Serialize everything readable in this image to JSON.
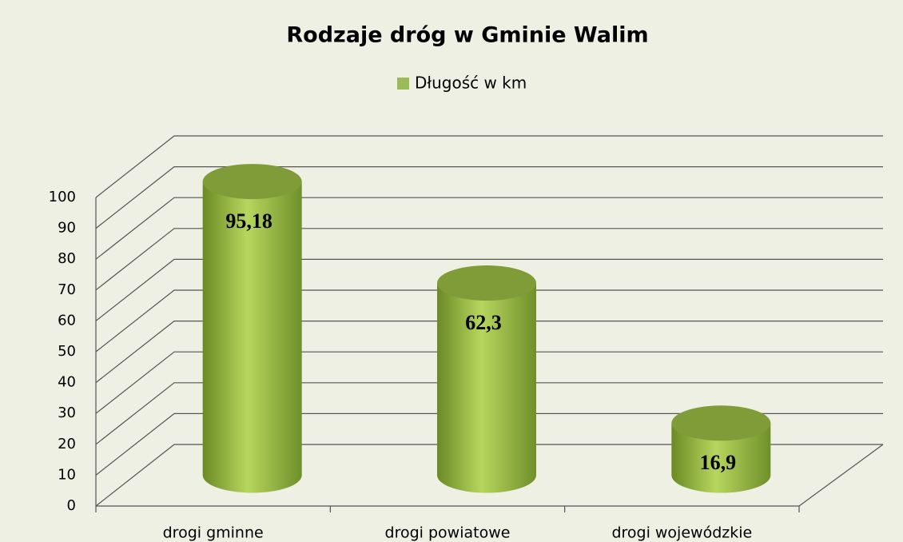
{
  "chart_data": {
    "type": "bar3d",
    "title": "Rodzaje dróg w Gminie Walim",
    "categories": [
      "drogi gminne",
      "drogi powiatowe",
      "drogi wojewódzkie"
    ],
    "series": [
      {
        "name": "Długość w km",
        "color": "#9bbb59",
        "values": [
          95.18,
          62.3,
          16.9
        ],
        "value_labels": [
          "95,18",
          "62,3",
          "16,9"
        ]
      }
    ],
    "ylim": [
      0,
      100
    ],
    "yticks": [
      0,
      10,
      20,
      30,
      40,
      50,
      60,
      70,
      80,
      90,
      100
    ],
    "grid": true,
    "legend": "top"
  }
}
